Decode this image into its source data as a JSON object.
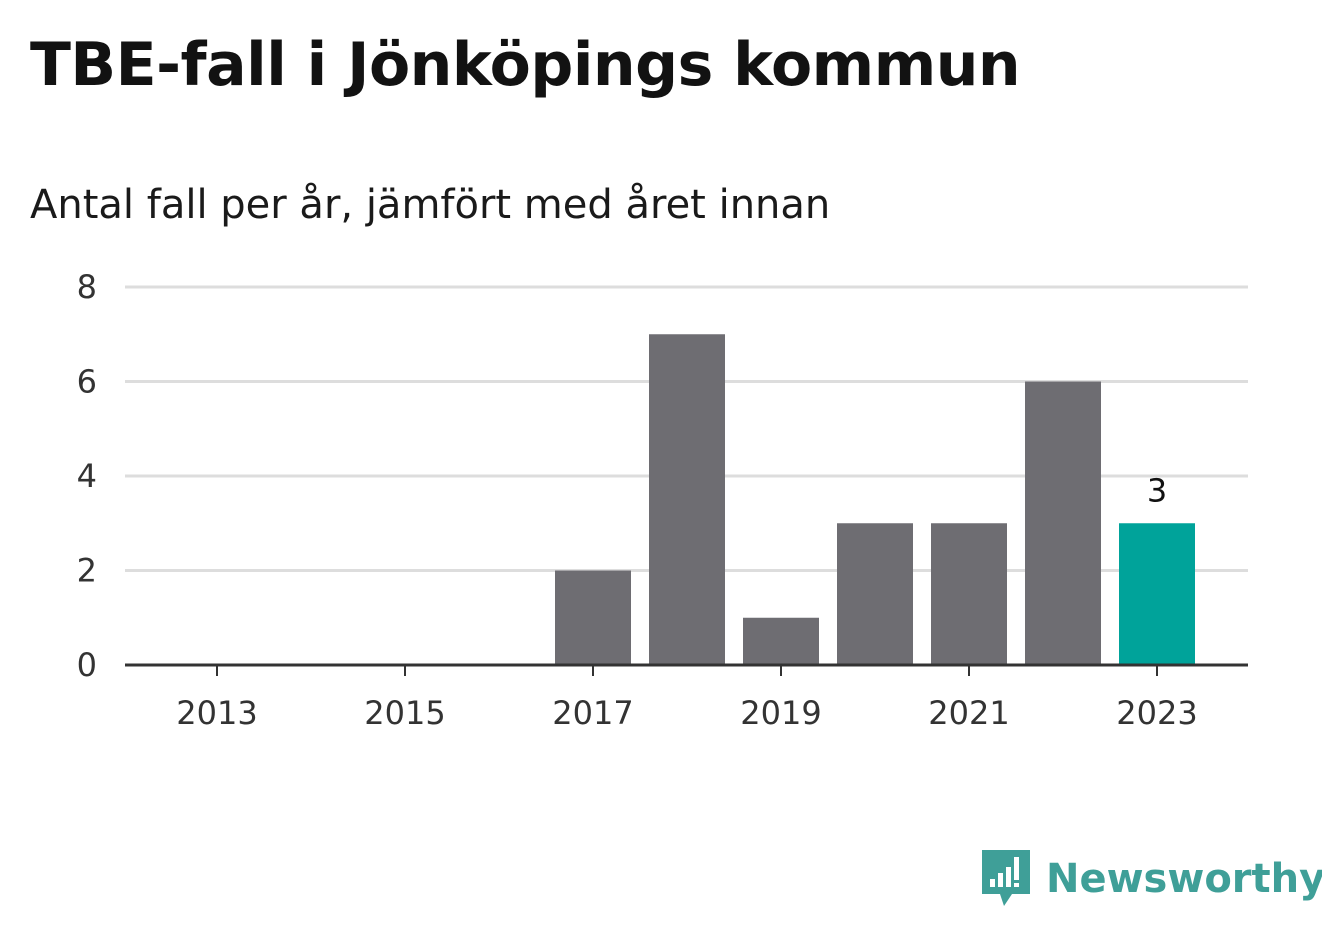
{
  "title": "TBE-fall i Jönköpings kommun",
  "subtitle": "Antal fall per år, jämfört med året innan",
  "brand": {
    "name": "Newsworthy",
    "color": "#3f9f98",
    "logo_icon": "newsworthy-bar-chart-speech-bubble-icon"
  },
  "colors": {
    "bar": "#6e6d72",
    "highlight": "#00a39a",
    "grid": "#dddddd",
    "axis": "#333333"
  },
  "chart_data": {
    "type": "bar",
    "title": "TBE-fall i Jönköpings kommun",
    "subtitle": "Antal fall per år, jämfört med året innan",
    "categories": [
      "2013",
      "2014",
      "2015",
      "2016",
      "2017",
      "2018",
      "2019",
      "2020",
      "2021",
      "2022",
      "2023"
    ],
    "values": [
      0,
      0,
      0,
      0,
      2,
      7,
      1,
      3,
      3,
      6,
      3
    ],
    "highlight_category": "2023",
    "x_tick_labels": [
      "2013",
      "2015",
      "2017",
      "2019",
      "2021",
      "2023"
    ],
    "y_ticks": [
      0,
      2,
      4,
      6,
      8
    ],
    "ylim": [
      0,
      8
    ],
    "data_labels": [
      {
        "category": "2023",
        "text": "3"
      }
    ],
    "grid": "horizontal",
    "legend": "none",
    "xlabel": "",
    "ylabel": ""
  }
}
